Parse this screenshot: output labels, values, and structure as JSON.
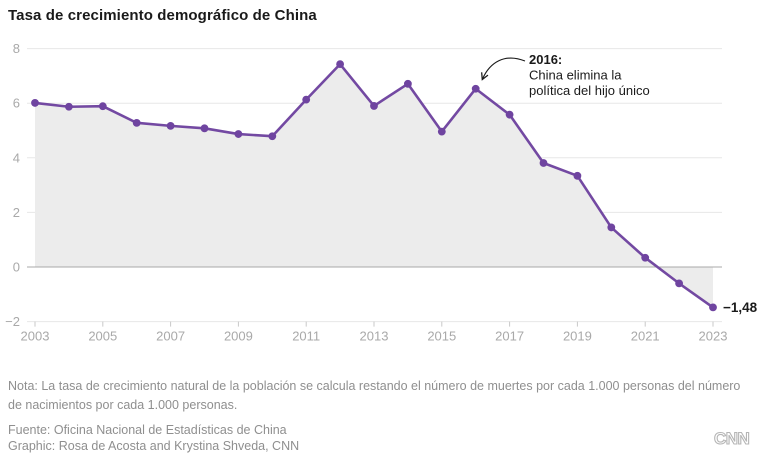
{
  "title": "Tasa de crecimiento demográfico de China",
  "chart_data": {
    "type": "line",
    "title": "Tasa de crecimiento demográfico de China",
    "x": [
      2003,
      2004,
      2005,
      2006,
      2007,
      2008,
      2009,
      2010,
      2011,
      2012,
      2013,
      2014,
      2015,
      2016,
      2017,
      2018,
      2019,
      2020,
      2021,
      2022,
      2023
    ],
    "values": [
      6.01,
      5.87,
      5.89,
      5.28,
      5.17,
      5.08,
      4.87,
      4.79,
      6.13,
      7.43,
      5.9,
      6.71,
      4.96,
      6.53,
      5.58,
      3.81,
      3.34,
      1.45,
      0.34,
      -0.6,
      -1.48
    ],
    "ylim": [
      -2,
      8
    ],
    "yticks": [
      8,
      6,
      4,
      2,
      0,
      -2
    ],
    "ytick_labels": [
      "8",
      "6",
      "4",
      "2",
      "0",
      "−2"
    ],
    "xticks": [
      2003,
      2005,
      2007,
      2009,
      2011,
      2013,
      2015,
      2017,
      2019,
      2021,
      2023
    ],
    "area_baseline": 0,
    "grid": "horizontal",
    "annotation": {
      "year": 2016,
      "lines": [
        "2016:",
        "China elimina la",
        "política del hijo único"
      ]
    },
    "end_label": "−1,48",
    "colors": {
      "line": "#7349a2",
      "point": "#6f44a0",
      "area": "#ececec",
      "grid": "#e7e7e7",
      "zero_line": "#a8a8a8",
      "axis_text": "#a9a9a9",
      "tick": "#c9c9c9",
      "annotation_text": "#1a1a1a",
      "value_label": "#1a1a1a"
    }
  },
  "footer": {
    "note": "Nota: La tasa de crecimiento natural de la población se calcula restando el número de muertes por cada 1.000 personas del número de nacimientos por cada 1.000 personas.",
    "source": "Fuente: Oficina Nacional de Estadísticas de China",
    "credit": "Graphic: Rosa de Acosta and Krystina Shveda, CNN",
    "logo": "CNN"
  }
}
